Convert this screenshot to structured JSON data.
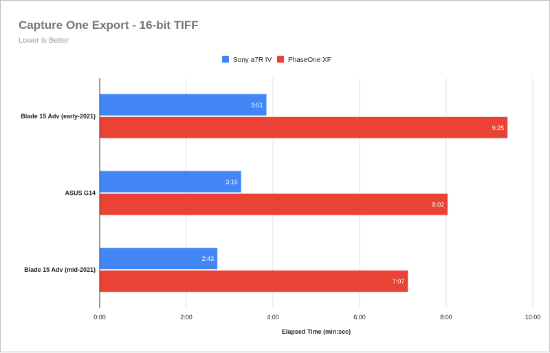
{
  "chart_data": {
    "type": "bar",
    "orientation": "horizontal",
    "title": "Capture One Export - 16-bit TIFF",
    "subtitle": "Lower is Better",
    "xlabel": "Elapsed Time (min:sec)",
    "ylabel": "",
    "categories": [
      "Blade 15 Adv (early-2021)",
      "ASUS G14",
      "Blade 15 Adv (mid-2021)"
    ],
    "series": [
      {
        "name": "Sony a7R IV",
        "color": "#4285f4",
        "values": [
          231,
          196,
          163
        ],
        "labels": [
          "3:51",
          "3:16",
          "2:43"
        ]
      },
      {
        "name": "PhaseOne XF",
        "color": "#ea4335",
        "values": [
          565,
          482,
          427
        ],
        "labels": [
          "9:25",
          "8:02",
          "7:07"
        ]
      }
    ],
    "xlim": [
      0,
      600
    ],
    "xticks": [
      0,
      120,
      240,
      360,
      480,
      600
    ],
    "xtick_labels": [
      "0:00",
      "2:00",
      "4:00",
      "6:00",
      "8:00",
      "10:00"
    ],
    "grid": "vertical",
    "legend_position": "top-center"
  }
}
